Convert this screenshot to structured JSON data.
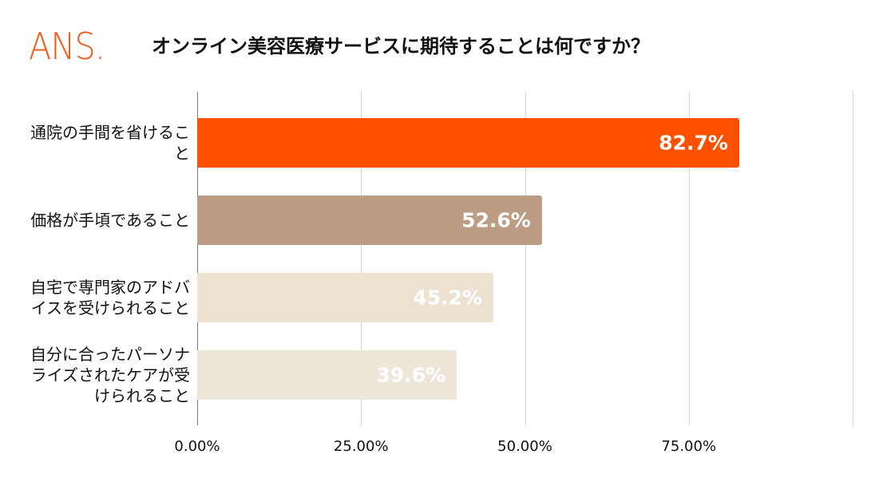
{
  "logo": "ANS.",
  "chart_data": {
    "type": "barh",
    "title": "オンライン美容医療サービスに期待することは何ですか？",
    "categories": [
      "通院の手間を省けること",
      "価格が手頃であること",
      "自宅で専門家のアドバイスを受けられること",
      "自分に合ったパーソナライズされたケアが受けられること"
    ],
    "values": [
      82.7,
      52.6,
      45.2,
      39.6
    ],
    "value_labels": [
      "82.7%",
      "52.6%",
      "45.2%",
      "39.6%"
    ],
    "colors": [
      "#ff5000",
      "#bd9c86",
      "#ede1d0",
      "#efe6da"
    ],
    "xlim": [
      0,
      100
    ],
    "xticks": [
      {
        "value": 0,
        "label": "0.00%"
      },
      {
        "value": 25,
        "label": "25.00%"
      },
      {
        "value": 50,
        "label": "50.00%"
      },
      {
        "value": 75,
        "label": "75.00%"
      }
    ],
    "grid": true
  }
}
